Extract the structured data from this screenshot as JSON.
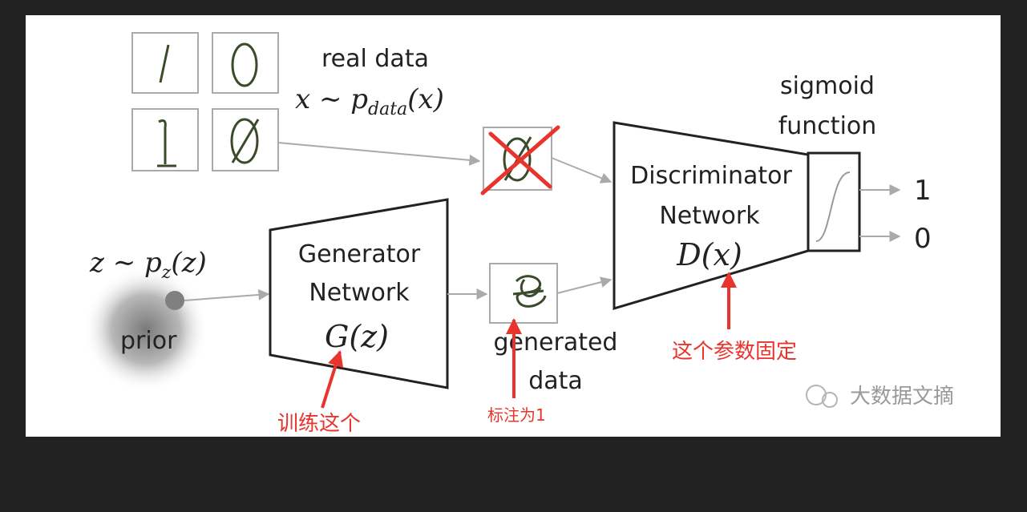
{
  "real_data": {
    "label": "real data",
    "formula": "x ∼ p",
    "formula_sub": "data",
    "formula_tail": "(x)"
  },
  "sigmoid": {
    "line1": "sigmoid",
    "line2": "function"
  },
  "discriminator": {
    "line1": "Discriminator",
    "line2": "Network",
    "formula": "D(x)"
  },
  "generator": {
    "line1": "Generator",
    "line2": "Network",
    "formula": "G(z)"
  },
  "prior": {
    "formula": "z ∼ p",
    "formula_sub": "z",
    "formula_tail": "(z)",
    "label": "prior"
  },
  "generated": {
    "line1": "generated",
    "line2": "data"
  },
  "outputs": [
    "1",
    "0"
  ],
  "annotations": {
    "train": "训练这个",
    "label1": "标注为1",
    "fixed": "这个参数固定"
  },
  "watermark": "大数据文摘",
  "colors": {
    "annotation": "#e8342d",
    "arrow": "#b0b0b0",
    "outline": "#222222"
  }
}
